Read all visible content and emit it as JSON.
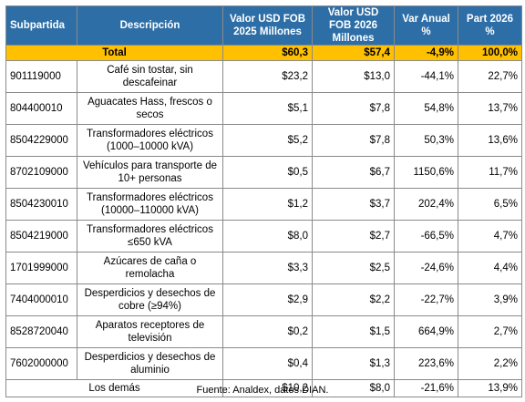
{
  "headers": {
    "subpartida": "Subpartida",
    "descripcion": "Descripción",
    "fob2025": "Valor USD FOB 2025 Millones",
    "fob2026": "Valor USD FOB 2026 Millones",
    "var": "Var Anual %",
    "part": "Part 2026 %"
  },
  "total": {
    "label": "Total",
    "fob2025": "$60,3",
    "fob2026": "$57,4",
    "var": "-4,9%",
    "part": "100,0%"
  },
  "rows": [
    {
      "code": "901119000",
      "desc": "Café sin tostar, sin descafeinar",
      "fob2025": "$23,2",
      "fob2026": "$13,0",
      "var": "-44,1%",
      "part": "22,7%"
    },
    {
      "code": "804400010",
      "desc": "Aguacates Hass, frescos o secos",
      "fob2025": "$5,1",
      "fob2026": "$7,8",
      "var": "54,8%",
      "part": "13,7%"
    },
    {
      "code": "8504229000",
      "desc": "Transformadores eléctricos (1000–10000 kVA)",
      "fob2025": "$5,2",
      "fob2026": "$7,8",
      "var": "50,3%",
      "part": "13,6%"
    },
    {
      "code": "8702109000",
      "desc": "Vehículos para transporte de 10+ personas",
      "fob2025": "$0,5",
      "fob2026": "$6,7",
      "var": "1150,6%",
      "part": "11,7%"
    },
    {
      "code": "8504230010",
      "desc": "Transformadores eléctricos (10000–110000 kVA)",
      "fob2025": "$1,2",
      "fob2026": "$3,7",
      "var": "202,4%",
      "part": "6,5%"
    },
    {
      "code": "8504219000",
      "desc": "Transformadores eléctricos ≤650 kVA",
      "fob2025": "$8,0",
      "fob2026": "$2,7",
      "var": "-66,5%",
      "part": "4,7%"
    },
    {
      "code": "1701999000",
      "desc": "Azúcares de caña o remolacha",
      "fob2025": "$3,3",
      "fob2026": "$2,5",
      "var": "-24,6%",
      "part": "4,4%"
    },
    {
      "code": "7404000010",
      "desc": "Desperdicios y desechos de cobre (≥94%)",
      "fob2025": "$2,9",
      "fob2026": "$2,2",
      "var": "-22,7%",
      "part": "3,9%"
    },
    {
      "code": "8528720040",
      "desc": "Aparatos receptores de televisión",
      "fob2025": "$0,2",
      "fob2026": "$1,5",
      "var": "664,9%",
      "part": "2,7%"
    },
    {
      "code": "7602000000",
      "desc": "Desperdicios y desechos de aluminio",
      "fob2025": "$0,4",
      "fob2026": "$1,3",
      "var": "223,6%",
      "part": "2,2%"
    }
  ],
  "others": {
    "label": "Los demás",
    "fob2025": "$10,2",
    "fob2026": "$8,0",
    "var": "-21,6%",
    "part": "13,9%"
  },
  "footer": "Fuente: Analdex, datos DIAN.",
  "colors": {
    "header_bg": "#2e6ea6",
    "total_bg": "#ffc000"
  }
}
